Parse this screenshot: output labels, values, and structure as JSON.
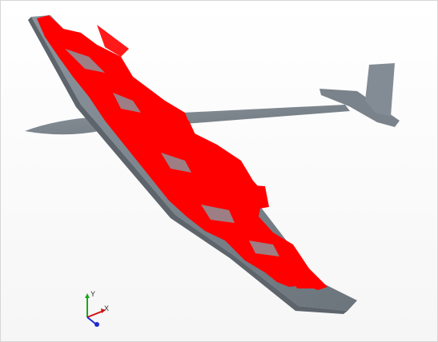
{
  "viewport": {
    "background": "#ffffff",
    "model_color": "#7e8790",
    "iso_surface_color": "#ff0000"
  },
  "axis_triad": {
    "x_label": "X",
    "y_label": "Y",
    "x_color": "#d01010",
    "y_color": "#1aa81a",
    "z_color": "#1b2bd0"
  }
}
